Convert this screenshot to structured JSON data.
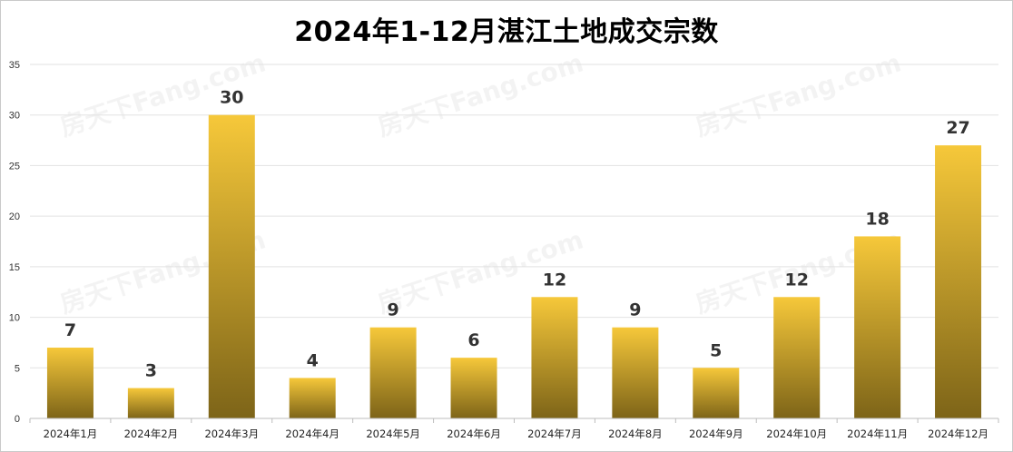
{
  "chart_data": {
    "type": "bar",
    "title": "2024年1-12月湛江土地成交宗数",
    "categories": [
      "2024年1月",
      "2024年2月",
      "2024年3月",
      "2024年4月",
      "2024年5月",
      "2024年6月",
      "2024年7月",
      "2024年8月",
      "2024年9月",
      "2024年10月",
      "2024年11月",
      "2024年12月"
    ],
    "values": [
      7,
      3,
      30,
      4,
      9,
      6,
      12,
      9,
      5,
      12,
      18,
      27
    ],
    "ylim": [
      0,
      35
    ],
    "yticks": [
      0,
      5,
      10,
      15,
      20,
      25,
      30,
      35
    ],
    "grid": true,
    "legend": "none",
    "bar_color_top": "#f6c83a",
    "bar_color_bottom": "#7d6418",
    "watermark": "房天下Fang.com"
  }
}
